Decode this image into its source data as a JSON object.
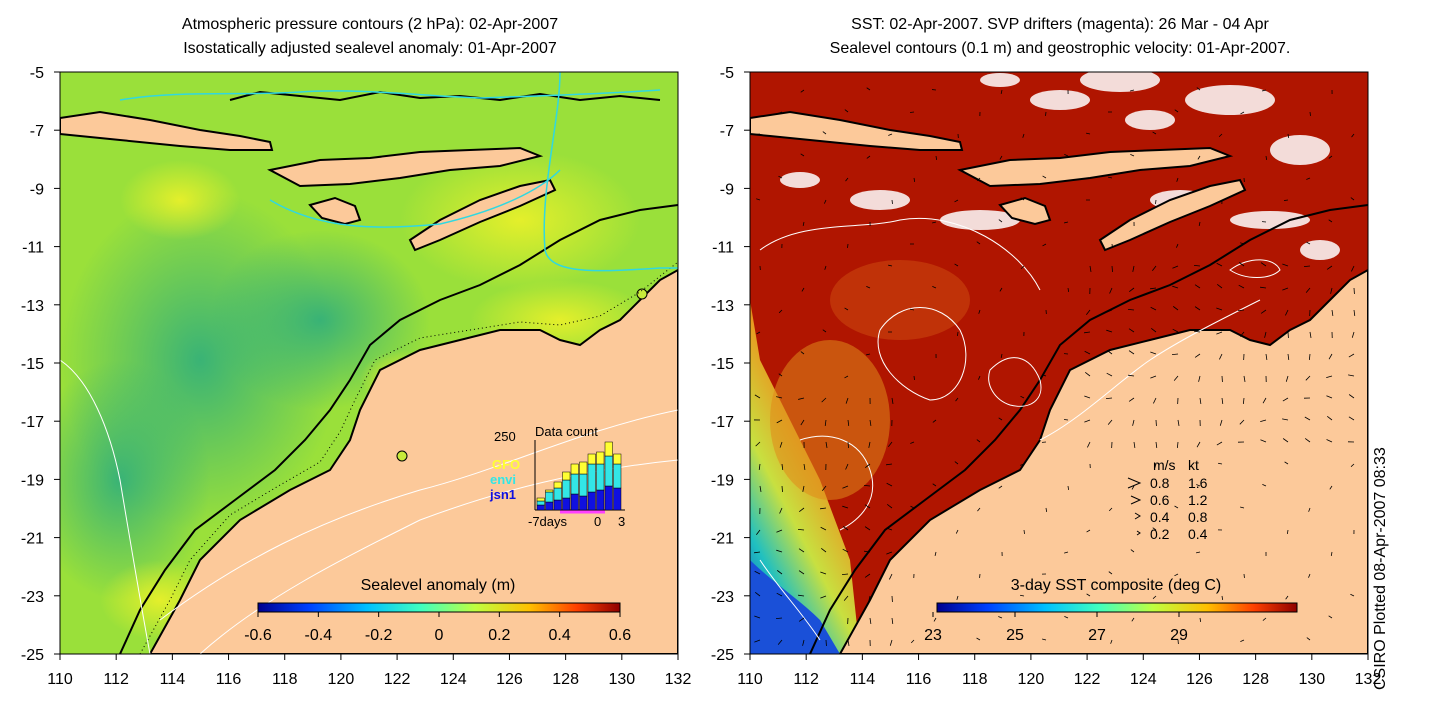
{
  "left_panel": {
    "title_line1": "Atmospheric pressure contours (2 hPa): 02-Apr-2007",
    "title_line2": "Isostatically adjusted sealevel anomaly: 01-Apr-2007",
    "x_ticks": [
      "110",
      "112",
      "114",
      "116",
      "118",
      "120",
      "122",
      "124",
      "126",
      "128",
      "130",
      "132"
    ],
    "y_ticks": [
      "-5",
      "-7",
      "-9",
      "-11",
      "-13",
      "-15",
      "-17",
      "-19",
      "-21",
      "-23",
      "-25"
    ],
    "colorbar": {
      "title": "Sealevel anomaly (m)",
      "ticks": [
        "-0.6",
        "-0.4",
        "-0.2",
        "0",
        "0.2",
        "0.4",
        "0.6"
      ],
      "palette": [
        "#00008f",
        "#0040ff",
        "#00c0ff",
        "#40ffbf",
        "#bfff40",
        "#ffc000",
        "#ff4000",
        "#8f0000"
      ]
    },
    "data_count": {
      "title": "Data count",
      "y_max_label": "250",
      "x_labels": [
        "-7days",
        "0",
        "3"
      ],
      "legend": [
        {
          "label": "GFO",
          "color": "#ffff33"
        },
        {
          "label": "envi",
          "color": "#33e6e6"
        },
        {
          "label": "jsn1",
          "color": "#1010e0"
        }
      ]
    }
  },
  "right_panel": {
    "title_line1": "SST: 02-Apr-2007. SVP drifters (magenta): 26 Mar - 04 Apr",
    "title_line2": "Sealevel contours (0.1 m) and geostrophic velocity: 01-Apr-2007.",
    "x_ticks": [
      "110",
      "112",
      "114",
      "116",
      "118",
      "120",
      "122",
      "124",
      "126",
      "128",
      "130",
      "132"
    ],
    "y_ticks": [
      "-5",
      "-7",
      "-9",
      "-11",
      "-13",
      "-15",
      "-17",
      "-19",
      "-21",
      "-23",
      "-25"
    ],
    "colorbar": {
      "title": "3-day SST composite (deg C)",
      "ticks": [
        "23",
        "25",
        "27",
        "29"
      ],
      "palette": [
        "#00008f",
        "#0040ff",
        "#00c0ff",
        "#40ffbf",
        "#bfff40",
        "#ffc000",
        "#ff4000",
        "#8f0000"
      ]
    },
    "velocity_legend": {
      "header_ms": "m/s",
      "header_kt": "kt",
      "rows": [
        {
          "ms": "0.8",
          "kt": "1.6"
        },
        {
          "ms": "0.6",
          "kt": "1.2"
        },
        {
          "ms": "0.4",
          "kt": "0.8"
        },
        {
          "ms": "0.2",
          "kt": "0.4"
        }
      ]
    }
  },
  "credit": "CSIRO Plotted 08-Apr-2007 08:33",
  "colors": {
    "land": "#fcc99a",
    "sst_hot": "#b01500",
    "sla_base": "#7fd63c"
  }
}
